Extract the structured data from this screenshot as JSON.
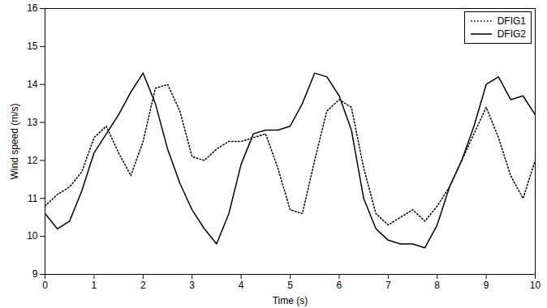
{
  "chart_data": {
    "type": "line",
    "x_label": "Time (s)",
    "y_label": "Wind speed (m/s)",
    "x": [
      0,
      0.25,
      0.5,
      0.75,
      1,
      1.25,
      1.5,
      1.75,
      2,
      2.25,
      2.5,
      2.75,
      3,
      3.25,
      3.5,
      3.75,
      4,
      4.25,
      4.5,
      4.75,
      5,
      5.25,
      5.5,
      5.75,
      6,
      6.25,
      6.5,
      6.75,
      7,
      7.25,
      7.5,
      7.75,
      8,
      8.25,
      8.5,
      8.75,
      9,
      9.25,
      9.5,
      9.75,
      10
    ],
    "series": [
      {
        "name": "DFIG1",
        "color": "#000000",
        "line_style": "dotted",
        "values": [
          10.8,
          11.1,
          11.3,
          11.7,
          12.6,
          12.9,
          12.2,
          11.6,
          12.5,
          13.9,
          14.0,
          13.3,
          12.1,
          12.0,
          12.3,
          12.5,
          12.5,
          12.6,
          12.7,
          11.8,
          10.7,
          10.6,
          12.0,
          13.3,
          13.6,
          13.4,
          11.8,
          10.6,
          10.3,
          10.5,
          10.7,
          10.4,
          10.8,
          11.3,
          12.0,
          12.7,
          13.4,
          12.6,
          11.6,
          11.0,
          12.0
        ]
      },
      {
        "name": "DFIG2",
        "color": "#000000",
        "line_style": "solid",
        "values": [
          10.6,
          10.2,
          10.4,
          11.2,
          12.2,
          12.7,
          13.2,
          13.8,
          14.3,
          13.5,
          12.3,
          11.4,
          10.7,
          10.2,
          9.8,
          10.6,
          11.9,
          12.7,
          12.8,
          12.8,
          12.9,
          13.5,
          14.3,
          14.2,
          13.7,
          12.8,
          11.0,
          10.2,
          9.9,
          9.8,
          9.8,
          9.7,
          10.3,
          11.3,
          12.0,
          12.9,
          14.0,
          14.2,
          13.6,
          13.7,
          13.2
        ]
      }
    ],
    "xlim": [
      0,
      10
    ],
    "ylim": [
      9,
      16
    ],
    "xticks": [
      0,
      1,
      2,
      3,
      4,
      5,
      6,
      7,
      8,
      9,
      10
    ],
    "yticks": [
      9,
      10,
      11,
      12,
      13,
      14,
      15,
      16
    ],
    "grid": false,
    "legend": "top-right"
  }
}
